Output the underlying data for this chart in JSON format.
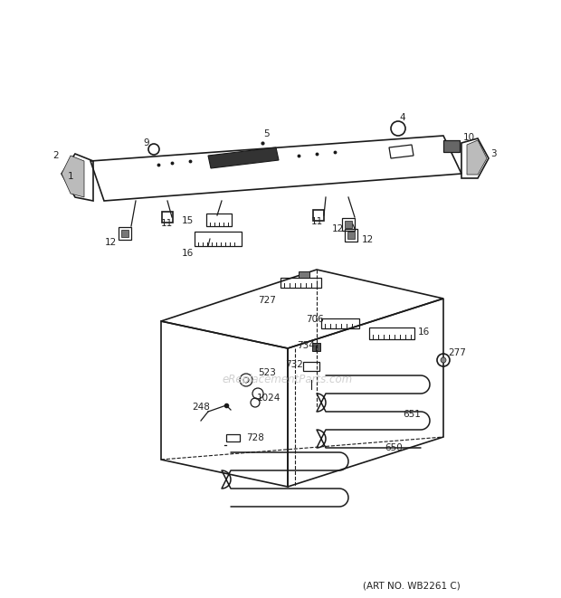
{
  "art_no": "(ART NO. WB2261 C)",
  "watermark": "eReplacementParts.com",
  "bg_color": "#ffffff",
  "line_color": "#1a1a1a",
  "fig_width": 6.2,
  "fig_height": 6.61,
  "dpi": 100
}
